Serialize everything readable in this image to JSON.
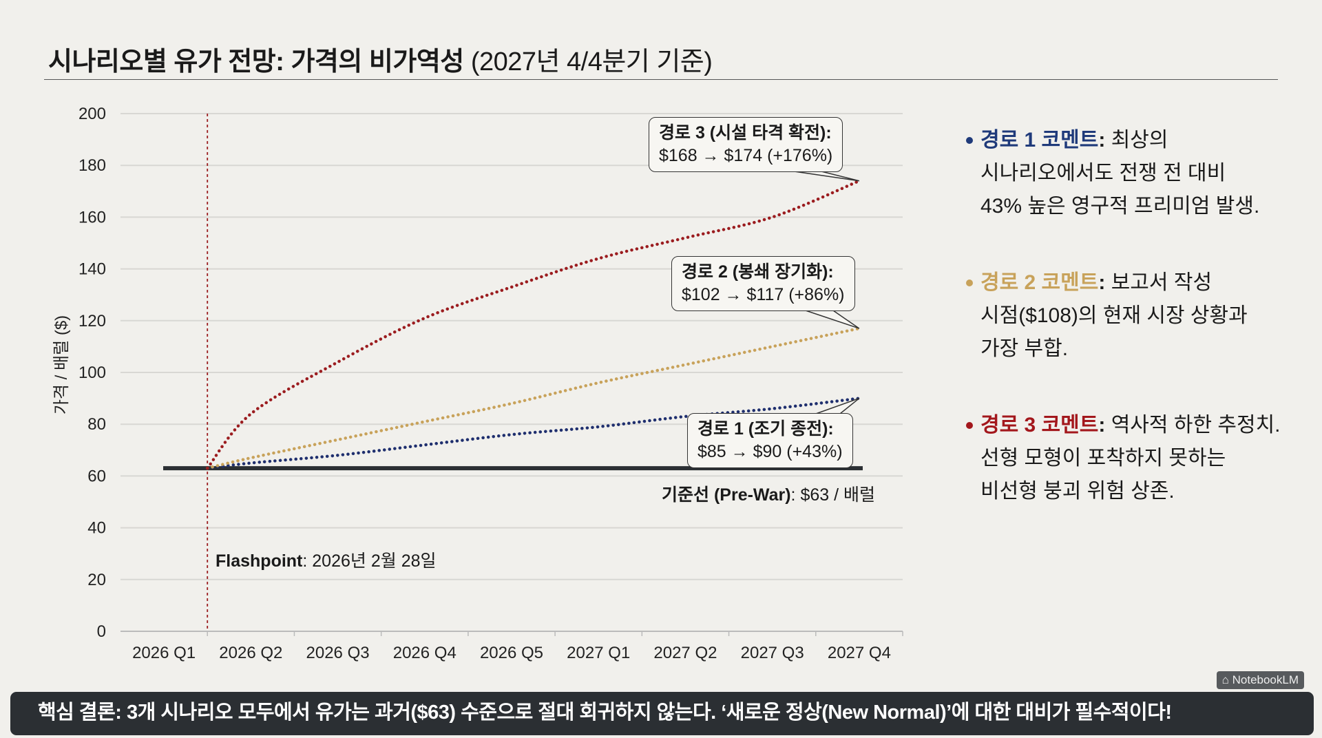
{
  "title": {
    "bold": "시나리오별 유가 전망: 가격의 비가역성",
    "regular": "(2027년 4/4분기 기준)"
  },
  "chart_data": {
    "type": "line",
    "ylabel": "가격 / 배럴 ($)",
    "xlabel": "",
    "ylim": [
      0,
      200
    ],
    "yticks": [
      0,
      20,
      40,
      60,
      80,
      100,
      120,
      140,
      160,
      180,
      200
    ],
    "grid": true,
    "categories": [
      "2026 Q1",
      "2026 Q2",
      "2026 Q3",
      "2026 Q4",
      "2026 Q5",
      "2027 Q1",
      "2027 Q2",
      "2027 Q3",
      "2027 Q4"
    ],
    "baseline": {
      "value": 63,
      "label_bold": "기준선 (Pre-War)",
      "label_rest": ": $63 / 배럴",
      "color": "#2b2f33"
    },
    "flashpoint": {
      "label_bold": "Flashpoint",
      "label_rest": ": 2026년 2월 28일",
      "color": "#9b1c1f"
    },
    "series": [
      {
        "id": "path1",
        "color": "#1f2f6e",
        "start_value": 63,
        "values": [
          null,
          65,
          68,
          72,
          76,
          79,
          83,
          86,
          90
        ],
        "annotation": {
          "title": "경로 1 (조기 종전):",
          "text": "$85 → $90 (+43%)"
        }
      },
      {
        "id": "path2",
        "color": "#c8a25a",
        "start_value": 63,
        "values": [
          null,
          67,
          74,
          81,
          88,
          96,
          103,
          110,
          117
        ],
        "annotation": {
          "title": "경로 2 (봉쇄 장기화):",
          "text": "$102 → $117 (+86%)"
        }
      },
      {
        "id": "path3",
        "color": "#9b1c1f",
        "start_value": 63,
        "values": [
          null,
          84,
          104,
          121,
          133,
          144,
          152,
          160,
          174
        ],
        "annotation": {
          "title": "경로 3 (시설 타격 확전):",
          "text": "$168 → $174 (+176%)"
        }
      }
    ]
  },
  "comments": [
    {
      "key": "경로 1 코멘트",
      "color": "#1f3a7a",
      "lines": [
        "최상의",
        "시나리오에서도 전쟁 전 대비",
        "43% 높은 영구적 프리미엄 발생."
      ]
    },
    {
      "key": "경로 2 코멘트",
      "color": "#c8a25a",
      "lines": [
        "보고서 작성",
        "시점($108)의 현재 시장 상황과",
        "가장 부합."
      ]
    },
    {
      "key": "경로 3 코멘트",
      "color": "#a3171c",
      "lines": [
        "역사적 하한 추정치.",
        "선형 모형이 포착하지 못하는",
        "비선형 붕괴 위험 상존."
      ]
    }
  ],
  "footer": {
    "text": "핵심 결론: 3개 시나리오 모두에서 유가는 과거($63) 수준으로 절대 회귀하지 않는다. ‘새로운 정상(New Normal)’에 대한 대비가 필수적이다!",
    "watermark": "NotebookLM"
  }
}
